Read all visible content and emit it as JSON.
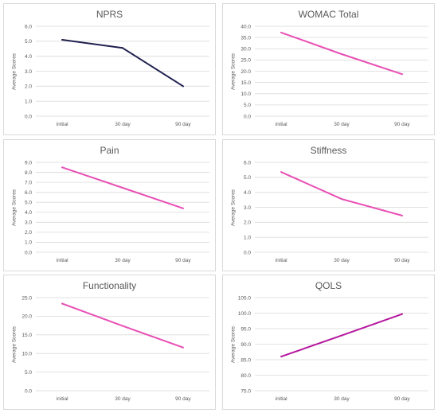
{
  "chart_data": [
    {
      "type": "line",
      "title": "NPRS",
      "ylabel": "Average Scores",
      "xlabel": "",
      "categories": [
        "initial",
        "30 day",
        "90 day"
      ],
      "values": [
        5.1,
        4.55,
        2.0
      ],
      "ylim": [
        0,
        6
      ],
      "ytick_step": 1,
      "ytick_decimals": 1,
      "grid": true,
      "line_color": "#1f1f4f"
    },
    {
      "type": "line",
      "title": "WOMAC Total",
      "ylabel": "Average Scores",
      "xlabel": "",
      "categories": [
        "initial",
        "30 day",
        "90 day"
      ],
      "values": [
        37.2,
        27.6,
        18.7
      ],
      "ylim": [
        0,
        40
      ],
      "ytick_step": 5,
      "ytick_decimals": 1,
      "grid": true,
      "line_color": "#e84fb5"
    },
    {
      "type": "line",
      "title": "Pain",
      "ylabel": "Average Scores",
      "xlabel": "",
      "categories": [
        "initial",
        "30 day",
        "90 day"
      ],
      "values": [
        8.5,
        6.45,
        4.4
      ],
      "ylim": [
        0,
        9
      ],
      "ytick_step": 1,
      "ytick_decimals": 1,
      "grid": true,
      "line_color": "#e84fb5"
    },
    {
      "type": "line",
      "title": "Stiffness",
      "ylabel": "Average Scores",
      "xlabel": "",
      "categories": [
        "initial",
        "30 day",
        "90 day"
      ],
      "values": [
        5.35,
        3.55,
        2.45
      ],
      "ylim": [
        0,
        6
      ],
      "ytick_step": 1,
      "ytick_decimals": 1,
      "grid": true,
      "line_color": "#e84fb5"
    },
    {
      "type": "line",
      "title": "Functionality",
      "ylabel": "Average Scores",
      "xlabel": "",
      "categories": [
        "initial",
        "30 day",
        "90 day"
      ],
      "values": [
        23.4,
        17.4,
        11.6
      ],
      "ylim": [
        0,
        25
      ],
      "ytick_step": 5,
      "ytick_decimals": 1,
      "grid": true,
      "line_color": "#e84fb5"
    },
    {
      "type": "line",
      "title": "QOLS",
      "ylabel": "Average Scores",
      "xlabel": "",
      "categories": [
        "initial",
        "30 day",
        "90 day"
      ],
      "values": [
        86.0,
        92.8,
        99.7
      ],
      "ylim": [
        75,
        105
      ],
      "ytick_step": 5,
      "ytick_decimals": 1,
      "grid": true,
      "line_color": "#b5179e"
    }
  ],
  "style": {
    "grid_color": "#d9d9d9",
    "tick_color": "#595959",
    "title_color": "#595959",
    "border_color": "#d9d9d9"
  }
}
